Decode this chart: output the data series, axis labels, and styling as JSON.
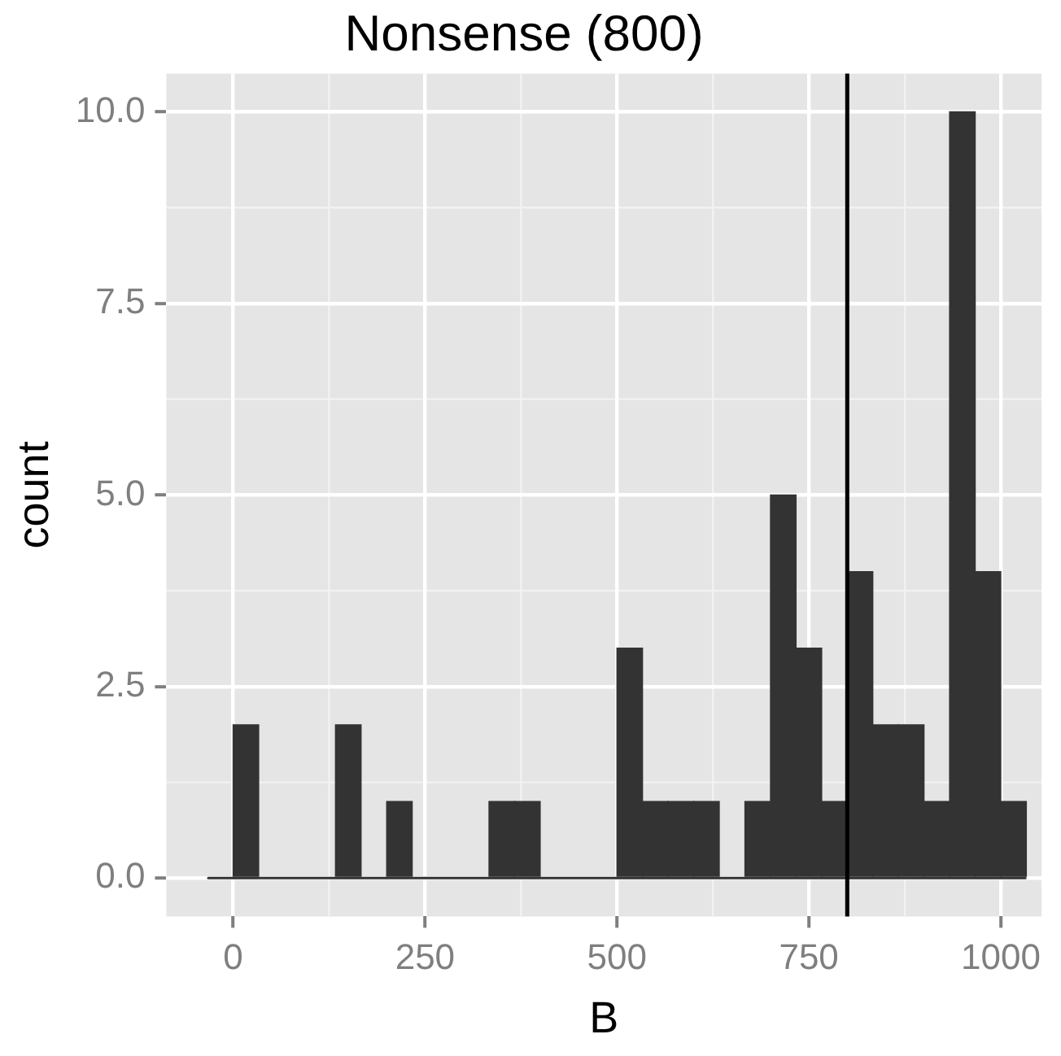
{
  "chart_data": {
    "type": "histogram",
    "title": "Nonsense (800)",
    "xlabel": "B",
    "ylabel": "count",
    "bins": [
      -33.3,
      0,
      33.3,
      66.7,
      100,
      133.3,
      166.7,
      200,
      233.3,
      266.7,
      300,
      333.3,
      366.7,
      400,
      433.3,
      466.7,
      500,
      533.3,
      566.7,
      600,
      633.3,
      666.7,
      700,
      733.3,
      766.7,
      800,
      833.3,
      866.7,
      900,
      933.3,
      966.7,
      1000,
      1033.3
    ],
    "values": [
      0,
      2,
      0,
      0,
      0,
      2,
      0,
      1,
      0,
      0,
      0,
      1,
      1,
      0,
      0,
      0,
      3,
      1,
      1,
      1,
      0,
      1,
      5,
      3,
      1,
      4,
      2,
      2,
      1,
      10,
      4,
      1
    ],
    "color": "#333333",
    "xlim": [
      -87,
      1053
    ],
    "ylim": [
      -0.5,
      10.5
    ],
    "xticks": [
      0,
      250,
      500,
      750,
      1000
    ],
    "yticks": [
      {
        "value": 0,
        "label": "0.0"
      },
      {
        "value": 2.5,
        "label": "2.5"
      },
      {
        "value": 5,
        "label": "5.0"
      },
      {
        "value": 7.5,
        "label": "7.5"
      },
      {
        "value": 10,
        "label": "10.0"
      }
    ],
    "grid": true,
    "legend": false,
    "ref_lines": [
      {
        "axis": "x",
        "value": 800,
        "color": "#000000"
      }
    ]
  }
}
